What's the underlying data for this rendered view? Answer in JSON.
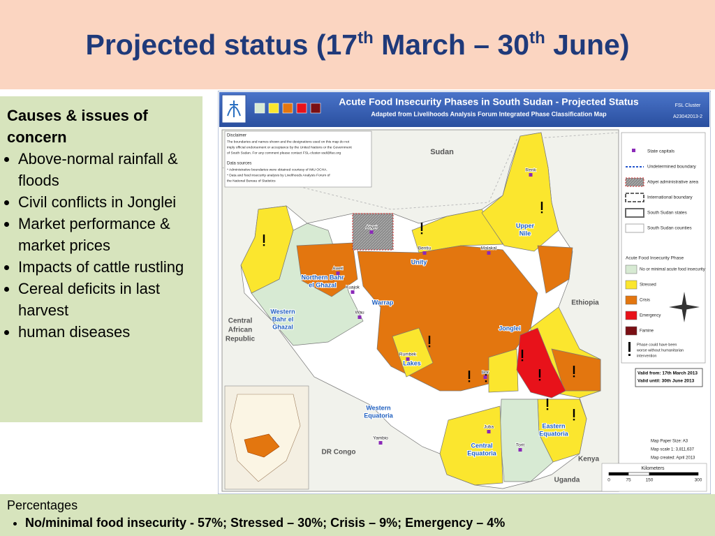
{
  "title": {
    "main": "Projected status (17",
    "sup1": "th",
    "middle": " March – 30",
    "sup2": "th",
    "end": " June)"
  },
  "causes": {
    "heading": "Causes & issues of concern",
    "items": [
      "Above-normal rainfall & floods",
      "Civil conflicts in Jonglei",
      "Market performance & market prices",
      " Impacts of cattle rustling",
      "Cereal deficits in last harvest",
      "human diseases"
    ]
  },
  "percentages": {
    "heading": "Percentages",
    "items": [
      "No/minimal food insecurity - 57%; Stressed – 30%; Crisis – 9%; Emergency – 4%"
    ]
  },
  "map": {
    "title": "Acute Food Insecurity Phases in South Sudan - Projected Status",
    "subtitle": "Adapted from Livelihoods Analysis Forum Integrated Phase Classification Map",
    "agency": "FSL Cluster",
    "code": "A23042013-2",
    "disclaimer": {
      "heading": "Disclaimer",
      "lines": [
        "The boundaries and names shown and the designations used on this map do not",
        "imply official endorsement or acceptance by the United Nations or the Government",
        "of South Sudan.  For any comment please contact FSL-cluster-ssd@fao.org"
      ]
    },
    "sources": {
      "heading": "Data sources",
      "lines": [
        "* Administrative boundaries were obtained courtesy of IMU OCHA.",
        "* Data and food insecurity analysis by Livelihoods Analysis Forum of",
        "  the National Bureau of Statistics"
      ]
    },
    "legend": {
      "items": [
        "State capitals",
        "Undetermined boundary",
        "Abyei administrative area",
        "International boundary",
        "South Sudan states",
        "South Sudan counties"
      ],
      "phase_heading": "Acute Food Insecurity Phase",
      "phases": [
        {
          "label": "No or minimal acute food insecurity",
          "color": "#d7ead3"
        },
        {
          "label": "Stressed",
          "color": "#fbe62e"
        },
        {
          "label": "Crisis",
          "color": "#e3760f"
        },
        {
          "label": "Emergency",
          "color": "#e8121a"
        },
        {
          "label": "Famine",
          "color": "#7a0f14"
        }
      ],
      "note": [
        "Phase could have been",
        "worse without humanitarian",
        "intervention"
      ]
    },
    "validity": [
      "Valid from: 17th March 2013",
      "Valid until: 30th June 2013"
    ],
    "print": [
      "Map Paper Size: A3",
      "Map scale 1: 3,811,637",
      "Map created: April 2013"
    ],
    "scale": {
      "title": "Kilometers",
      "ticks": [
        "0",
        "75",
        "150",
        "300"
      ]
    },
    "countries": [
      {
        "lines": [
          "Sudan"
        ]
      },
      {
        "lines": [
          "Ethiopia"
        ]
      },
      {
        "lines": [
          "Central",
          "African",
          "Republic"
        ]
      },
      {
        "lines": [
          "DR Congo"
        ]
      },
      {
        "lines": [
          "Kenya"
        ]
      },
      {
        "lines": [
          "Uganda"
        ]
      }
    ],
    "states": [
      {
        "lines": [
          "Upper",
          "Nile"
        ]
      },
      {
        "lines": [
          "Unity"
        ]
      },
      {
        "lines": [
          "Northern Bahr",
          "el Ghazal"
        ]
      },
      {
        "lines": [
          "Warrap"
        ]
      },
      {
        "lines": [
          "Western",
          "Bahr el",
          "Ghazal"
        ]
      },
      {
        "lines": [
          "Jonglei"
        ]
      },
      {
        "lines": [
          "Lakes"
        ]
      },
      {
        "lines": [
          "Western",
          "Equatoria"
        ]
      },
      {
        "lines": [
          "Central",
          "Equatoria"
        ]
      },
      {
        "lines": [
          "Eastern",
          "Equatoria"
        ]
      }
    ],
    "towns": [
      "Renk",
      "Malakal",
      "Bentiu",
      "Aweil",
      "Kuajok",
      "Wau",
      "Rumbek",
      "Bor",
      "Juba",
      "Torit",
      "Yambio",
      "Abyei"
    ]
  }
}
